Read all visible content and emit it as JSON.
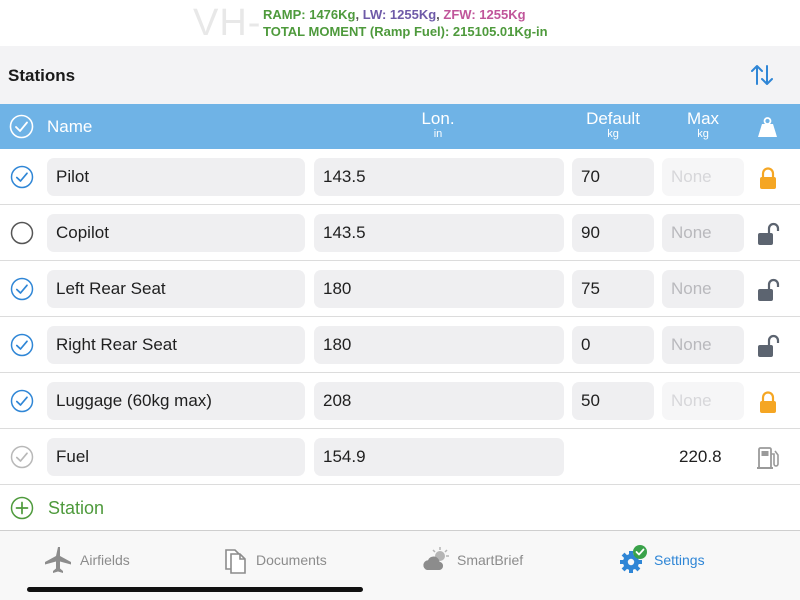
{
  "header": {
    "registration_watermark": "VH-",
    "ramp_label": "RAMP: 1476Kg",
    "lw_label": "LW: 1255Kg",
    "zfw_label": "ZFW: 1255Kg",
    "separator": ",",
    "moment_label": "TOTAL MOMENT (Ramp Fuel): 215105.01Kg-in"
  },
  "section": {
    "title": "Stations",
    "sort_icon": "sort-arrows-icon"
  },
  "columns": {
    "name": "Name",
    "lon": "Lon.",
    "lon_unit": "in",
    "default": "Default",
    "default_unit": "kg",
    "max": "Max",
    "max_unit": "kg"
  },
  "rows": [
    {
      "checked": true,
      "name": "Pilot",
      "lon": "143.5",
      "default": "70",
      "max": "None",
      "locked": true
    },
    {
      "checked": false,
      "name": "Copilot",
      "lon": "143.5",
      "default": "90",
      "max": "None",
      "locked": false
    },
    {
      "checked": true,
      "name": "Left Rear Seat",
      "lon": "180",
      "default": "75",
      "max": "None",
      "locked": false
    },
    {
      "checked": true,
      "name": "Right Rear Seat",
      "lon": "180",
      "default": "0",
      "max": "None",
      "locked": false
    },
    {
      "checked": true,
      "name": "Luggage (60kg max)",
      "lon": "208",
      "default": "50",
      "max": "None",
      "locked": true
    }
  ],
  "fuel_row": {
    "name": "Fuel",
    "lon": "154.9",
    "max": "220.8"
  },
  "add_station": {
    "label": "Station"
  },
  "tabs": [
    {
      "label": "Airfields",
      "icon": "airplane-icon"
    },
    {
      "label": "Documents",
      "icon": "documents-icon"
    },
    {
      "label": "SmartBrief",
      "icon": "weather-icon"
    },
    {
      "label": "Settings",
      "icon": "gear-icon",
      "active": true
    }
  ],
  "colors": {
    "accent": "#2f86d6",
    "header_blue": "#6fb3e6",
    "green": "#4e9a3c",
    "lock_orange": "#f5a623"
  }
}
